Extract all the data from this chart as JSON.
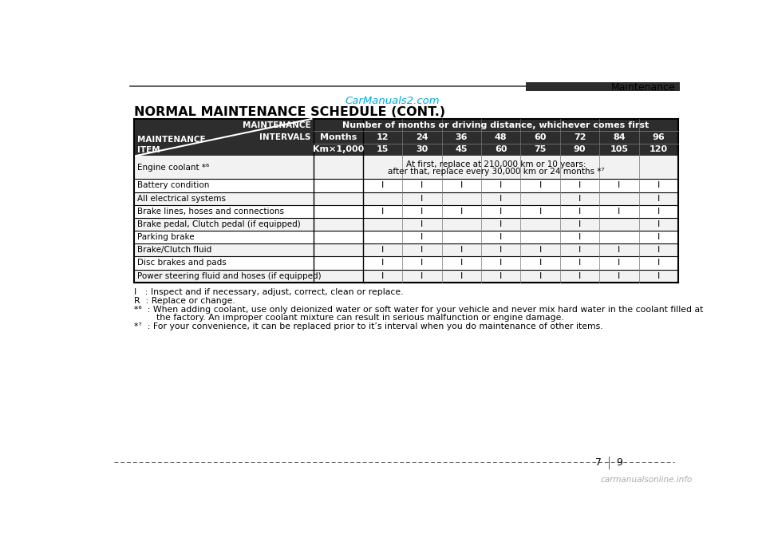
{
  "page_title": "Maintenance",
  "watermark": "CarManuals2.com",
  "section_title": "NORMAL MAINTENANCE SCHEDULE (CONT.)",
  "header_col1": "Number of months or driving distance, whichever comes first",
  "months_label": "Months",
  "km_label": "Km×1,000",
  "months_values": [
    "12",
    "24",
    "36",
    "48",
    "60",
    "72",
    "84",
    "96"
  ],
  "km_values": [
    "15",
    "30",
    "45",
    "60",
    "75",
    "90",
    "105",
    "120"
  ],
  "rows": [
    {
      "name": "Engine coolant *⁶",
      "special": true,
      "special_text": [
        "At first, replace at 210,000 km or 10 years:",
        "after that, replace every 30,000 km or 24 months *⁷"
      ]
    },
    {
      "name": "Battery condition",
      "values": [
        "I",
        "I",
        "I",
        "I",
        "I",
        "I",
        "I",
        "I"
      ]
    },
    {
      "name": "All electrical systems",
      "values": [
        "",
        "I",
        "",
        "I",
        "",
        "I",
        "",
        "I"
      ]
    },
    {
      "name": "Brake lines, hoses and connections",
      "values": [
        "I",
        "I",
        "I",
        "I",
        "I",
        "I",
        "I",
        "I"
      ]
    },
    {
      "name": "Brake pedal, Clutch pedal (if equipped)",
      "values": [
        "",
        "I",
        "",
        "I",
        "",
        "I",
        "",
        "I"
      ]
    },
    {
      "name": "Parking brake",
      "values": [
        "",
        "I",
        "",
        "I",
        "",
        "I",
        "",
        "I"
      ]
    },
    {
      "name": "Brake/Clutch fluid",
      "values": [
        "I",
        "I",
        "I",
        "I",
        "I",
        "I",
        "I",
        "I"
      ]
    },
    {
      "name": "Disc brakes and pads",
      "values": [
        "I",
        "I",
        "I",
        "I",
        "I",
        "I",
        "I",
        "I"
      ]
    },
    {
      "name": "Power steering fluid and hoses (if equipped)",
      "values": [
        "I",
        "I",
        "I",
        "I",
        "I",
        "I",
        "I",
        "I"
      ]
    }
  ],
  "footnote1": "I   : Inspect and if necessary, adjust, correct, clean or replace.",
  "footnote2": "R  : Replace or change.",
  "footnote3a": "*⁶  : When adding coolant, use only deionized water or soft water for your vehicle and never mix hard water in the coolant filled at",
  "footnote3b": "        the factory. An improper coolant mixture can result in serious malfunction or engine damage.",
  "footnote4": "*⁷  : For your convenience, it can be replaced prior to it’s interval when you do maintenance of other items.",
  "header_bg": "#2d2d2d",
  "row_bg_odd": "#f2f2f2",
  "row_bg_even": "#ffffff",
  "watermark_color": "#00aadd",
  "bottom_url": "carmanualsonline.info"
}
